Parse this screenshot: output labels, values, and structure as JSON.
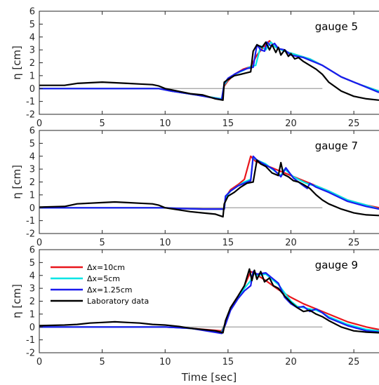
{
  "chart_data": [
    {
      "type": "line",
      "title": "gauge 5",
      "xlabel": "",
      "ylabel": "η [cm]",
      "xlim": [
        0,
        27
      ],
      "ylim": [
        -2,
        6
      ],
      "x_ticks": [
        "0",
        "5",
        "10",
        "15",
        "20",
        "25"
      ],
      "y_ticks": [
        "-2",
        "-1",
        "0",
        "1",
        "2",
        "3",
        "4",
        "5",
        "6"
      ],
      "reference_line": {
        "y": 0,
        "x": [
          0,
          22.5
        ],
        "color": "#a0a0a0"
      },
      "series": [
        {
          "name": "Δx=10cm",
          "color": "#e8161c",
          "x": [
            0,
            9.5,
            10.5,
            12.5,
            14.5,
            14.7,
            15.0,
            15.5,
            16.2,
            16.8,
            17.3,
            17.8,
            18.3,
            18.8,
            19.5,
            20.5,
            21.5,
            22.5,
            24.0,
            25.5,
            27.0
          ],
          "y": [
            0,
            0,
            -0.2,
            -0.5,
            -0.8,
            0.2,
            0.6,
            1.1,
            1.5,
            1.7,
            2.6,
            3.2,
            3.7,
            3.2,
            2.9,
            2.6,
            2.3,
            1.8,
            0.9,
            0.3,
            -0.2
          ]
        },
        {
          "name": "Δx=5cm",
          "color": "#00e5e5",
          "x": [
            0,
            9.5,
            10.5,
            12.5,
            14.5,
            14.7,
            15.0,
            15.5,
            16.2,
            16.8,
            17.2,
            17.6,
            18.0,
            18.4,
            18.8,
            19.5,
            20.5,
            21.5,
            22.5,
            24.0,
            25.5,
            27.0
          ],
          "y": [
            0,
            0,
            -0.2,
            -0.5,
            -0.8,
            0.3,
            0.7,
            1.1,
            1.4,
            1.7,
            1.8,
            3.3,
            3.0,
            3.6,
            3.2,
            2.9,
            2.6,
            2.3,
            1.8,
            0.9,
            0.3,
            -0.2
          ]
        },
        {
          "name": "Δx=1.25cm",
          "color": "#1a1aee",
          "x": [
            0,
            9.5,
            10.5,
            12.5,
            14.5,
            14.7,
            15.0,
            15.5,
            16.0,
            16.5,
            17.0,
            17.3,
            17.6,
            17.9,
            18.1,
            18.4,
            18.7,
            19.0,
            19.5,
            20.0,
            20.5,
            21.0,
            21.5,
            22.0,
            22.5,
            24.0,
            25.5,
            27.0
          ],
          "y": [
            0,
            0,
            -0.2,
            -0.5,
            -0.85,
            0.4,
            0.8,
            1.1,
            1.35,
            1.55,
            1.65,
            3.4,
            3.0,
            2.9,
            3.6,
            3.3,
            3.5,
            3.1,
            3.0,
            2.6,
            2.5,
            2.4,
            2.2,
            2.0,
            1.8,
            0.9,
            0.3,
            -0.3
          ]
        },
        {
          "name": "Laboratory data",
          "color": "#000000",
          "x": [
            0,
            2,
            3,
            4,
            5,
            6,
            7,
            8,
            9,
            9.5,
            10,
            11,
            12,
            13,
            14,
            14.6,
            14.7,
            15.0,
            15.5,
            16.0,
            16.4,
            16.8,
            17.0,
            17.3,
            17.7,
            18.0,
            18.3,
            18.5,
            18.8,
            19.0,
            19.2,
            19.5,
            19.8,
            20.0,
            20.3,
            20.6,
            21.0,
            21.5,
            22.0,
            22.5,
            23.0,
            24.0,
            25.0,
            26.0,
            27.0
          ],
          "y": [
            0.25,
            0.25,
            0.4,
            0.45,
            0.5,
            0.45,
            0.4,
            0.35,
            0.3,
            0.2,
            0.0,
            -0.2,
            -0.4,
            -0.5,
            -0.8,
            -0.9,
            0.5,
            0.7,
            1.0,
            1.1,
            1.2,
            1.3,
            2.9,
            3.4,
            3.2,
            3.6,
            3.0,
            3.4,
            2.8,
            3.2,
            2.6,
            3.0,
            2.5,
            2.7,
            2.3,
            2.4,
            2.1,
            1.8,
            1.5,
            1.1,
            0.5,
            -0.2,
            -0.6,
            -0.8,
            -0.9
          ]
        }
      ]
    },
    {
      "type": "line",
      "title": "gauge 7",
      "xlabel": "",
      "ylabel": "η [cm]",
      "xlim": [
        0,
        27
      ],
      "ylim": [
        -2,
        6
      ],
      "x_ticks": [
        "0",
        "5",
        "10",
        "15",
        "20",
        "25"
      ],
      "y_ticks": [
        "-2",
        "-1",
        "0",
        "1",
        "2",
        "3",
        "4",
        "5",
        "6"
      ],
      "reference_line": {
        "y": 0,
        "x": [
          0,
          22.5
        ],
        "color": "#a0a0a0"
      },
      "series": [
        {
          "name": "Δx=10cm",
          "color": "#e8161c",
          "x": [
            0,
            10,
            11,
            13,
            14.7,
            14.8,
            15.2,
            15.8,
            16.3,
            16.8,
            17.2,
            18.0,
            19.0,
            20.0,
            21.0,
            22.0,
            23.0,
            24.5,
            26.0,
            27.0
          ],
          "y": [
            0,
            0,
            -0.05,
            -0.1,
            -0.1,
            0.8,
            1.4,
            1.8,
            2.2,
            4.0,
            3.6,
            3.3,
            2.9,
            2.5,
            2.1,
            1.7,
            1.3,
            0.6,
            0.2,
            0.0
          ]
        },
        {
          "name": "Δx=5cm",
          "color": "#00e5e5",
          "x": [
            0,
            10,
            11,
            13,
            14.7,
            14.8,
            15.2,
            15.8,
            16.3,
            16.8,
            17.0,
            17.3,
            18.0,
            18.5,
            19.2,
            19.5,
            20.2,
            21.0,
            21.5,
            22.0,
            23.0,
            24.5,
            26.0,
            27.0
          ],
          "y": [
            0,
            0,
            -0.05,
            -0.1,
            -0.1,
            0.8,
            1.3,
            1.7,
            2.0,
            2.2,
            3.9,
            3.7,
            3.4,
            3.0,
            2.5,
            3.0,
            2.4,
            2.0,
            1.8,
            1.7,
            1.3,
            0.6,
            0.2,
            -0.1
          ]
        },
        {
          "name": "Δx=1.25cm",
          "color": "#1a1aee",
          "x": [
            0,
            10,
            11,
            13,
            14.7,
            14.8,
            15.2,
            15.8,
            16.3,
            16.8,
            17.0,
            17.3,
            18.0,
            18.6,
            19.2,
            19.6,
            20.2,
            21.0,
            21.3,
            21.5,
            22.0,
            23.0,
            24.5,
            26.0,
            27.0
          ],
          "y": [
            0,
            0,
            -0.05,
            -0.1,
            -0.1,
            0.9,
            1.3,
            1.7,
            1.9,
            2.1,
            4.0,
            3.7,
            3.3,
            3.0,
            2.4,
            3.1,
            2.3,
            1.7,
            1.5,
            1.9,
            1.6,
            1.2,
            0.5,
            0.1,
            -0.1
          ]
        },
        {
          "name": "Laboratory data",
          "color": "#000000",
          "x": [
            0,
            2,
            3,
            5,
            6,
            7,
            8,
            9,
            9.5,
            10,
            11,
            12,
            13,
            14,
            14.6,
            14.7,
            15.0,
            15.5,
            16.0,
            16.5,
            17.0,
            17.3,
            17.6,
            18.0,
            18.5,
            19.0,
            19.2,
            19.4,
            19.8,
            20.2,
            20.6,
            21.0,
            21.5,
            22.0,
            22.5,
            23.0,
            24.0,
            25.0,
            26.0,
            27.0
          ],
          "y": [
            0.05,
            0.1,
            0.3,
            0.4,
            0.45,
            0.4,
            0.35,
            0.3,
            0.2,
            0.0,
            -0.15,
            -0.3,
            -0.4,
            -0.5,
            -0.7,
            0.3,
            0.9,
            1.2,
            1.6,
            1.9,
            2.0,
            3.7,
            3.4,
            3.2,
            2.7,
            2.5,
            3.5,
            2.6,
            2.4,
            2.1,
            2.0,
            1.8,
            1.5,
            1.0,
            0.6,
            0.3,
            -0.1,
            -0.4,
            -0.55,
            -0.6
          ]
        }
      ]
    },
    {
      "type": "line",
      "title": "gauge 9",
      "xlabel": "Time [sec]",
      "ylabel": "η [cm]",
      "xlim": [
        0,
        27
      ],
      "ylim": [
        -2,
        6
      ],
      "x_ticks": [
        "0",
        "5",
        "10",
        "15",
        "20",
        "25"
      ],
      "y_ticks": [
        "-2",
        "-1",
        "0",
        "1",
        "2",
        "3",
        "4",
        "5",
        "6"
      ],
      "legend_position": "top-left",
      "reference_line": {
        "y": 0,
        "x": [
          0,
          22.5
        ],
        "color": "#a0a0a0"
      },
      "series": [
        {
          "name": "Δx=10cm",
          "color": "#e8161c",
          "x": [
            0,
            10,
            12,
            14.5,
            14.8,
            15.2,
            15.8,
            16.3,
            16.8,
            17.2,
            18.0,
            19.0,
            20.0,
            21.0,
            22.0,
            23.0,
            24.5,
            26.0,
            27.0
          ],
          "y": [
            0,
            0,
            -0.1,
            -0.3,
            0.3,
            1.5,
            2.4,
            3.2,
            4.3,
            4.1,
            3.6,
            2.9,
            2.3,
            1.8,
            1.4,
            1.0,
            0.4,
            0.0,
            -0.2
          ]
        },
        {
          "name": "Δx=5cm",
          "color": "#00e5e5",
          "x": [
            0,
            10,
            12,
            14.5,
            14.8,
            15.2,
            15.8,
            16.3,
            16.8,
            17.0,
            17.3,
            18.0,
            19.0,
            20.0,
            20.5,
            21.0,
            22.0,
            22.5,
            23.0,
            24.5,
            26.0,
            27.0
          ],
          "y": [
            0,
            0,
            -0.1,
            -0.4,
            0.3,
            1.4,
            2.3,
            3.0,
            3.6,
            4.2,
            4.0,
            4.1,
            3.3,
            2.0,
            1.6,
            1.5,
            1.3,
            1.1,
            0.8,
            0.2,
            -0.2,
            -0.3
          ]
        },
        {
          "name": "Δx=1.25cm",
          "color": "#1a1aee",
          "x": [
            0,
            10,
            12,
            14.5,
            14.8,
            15.2,
            15.8,
            16.3,
            16.8,
            17.0,
            17.3,
            18.0,
            19.0,
            19.5,
            20.0,
            20.5,
            21.0,
            21.5,
            22.0,
            22.5,
            23.0,
            24.5,
            26.0,
            27.0
          ],
          "y": [
            0,
            0,
            -0.1,
            -0.5,
            0.2,
            1.3,
            2.2,
            2.8,
            3.2,
            4.3,
            4.1,
            4.2,
            3.4,
            2.3,
            1.8,
            1.5,
            1.6,
            1.2,
            1.4,
            1.1,
            0.7,
            0.1,
            -0.3,
            -0.4
          ]
        },
        {
          "name": "Laboratory data",
          "color": "#000000",
          "x": [
            0,
            2,
            3,
            4,
            5,
            6,
            7,
            8,
            9,
            10,
            11,
            12,
            13,
            14,
            14.6,
            14.8,
            15.2,
            15.8,
            16.3,
            16.7,
            16.9,
            17.1,
            17.3,
            17.6,
            17.9,
            18.3,
            18.6,
            19.0,
            19.5,
            20.0,
            20.5,
            21.0,
            21.5,
            22.0,
            22.5,
            23.0,
            24.0,
            25.0,
            26.0,
            27.0
          ],
          "y": [
            0.1,
            0.15,
            0.2,
            0.3,
            0.35,
            0.4,
            0.35,
            0.3,
            0.2,
            0.15,
            0.05,
            -0.1,
            -0.2,
            -0.3,
            -0.45,
            0.5,
            1.5,
            2.4,
            3.2,
            4.5,
            3.6,
            4.4,
            3.7,
            4.3,
            3.5,
            3.8,
            3.2,
            3.0,
            2.4,
            1.9,
            1.5,
            1.2,
            1.3,
            1.0,
            0.8,
            0.5,
            0.0,
            -0.3,
            -0.4,
            -0.45
          ]
        }
      ]
    }
  ]
}
